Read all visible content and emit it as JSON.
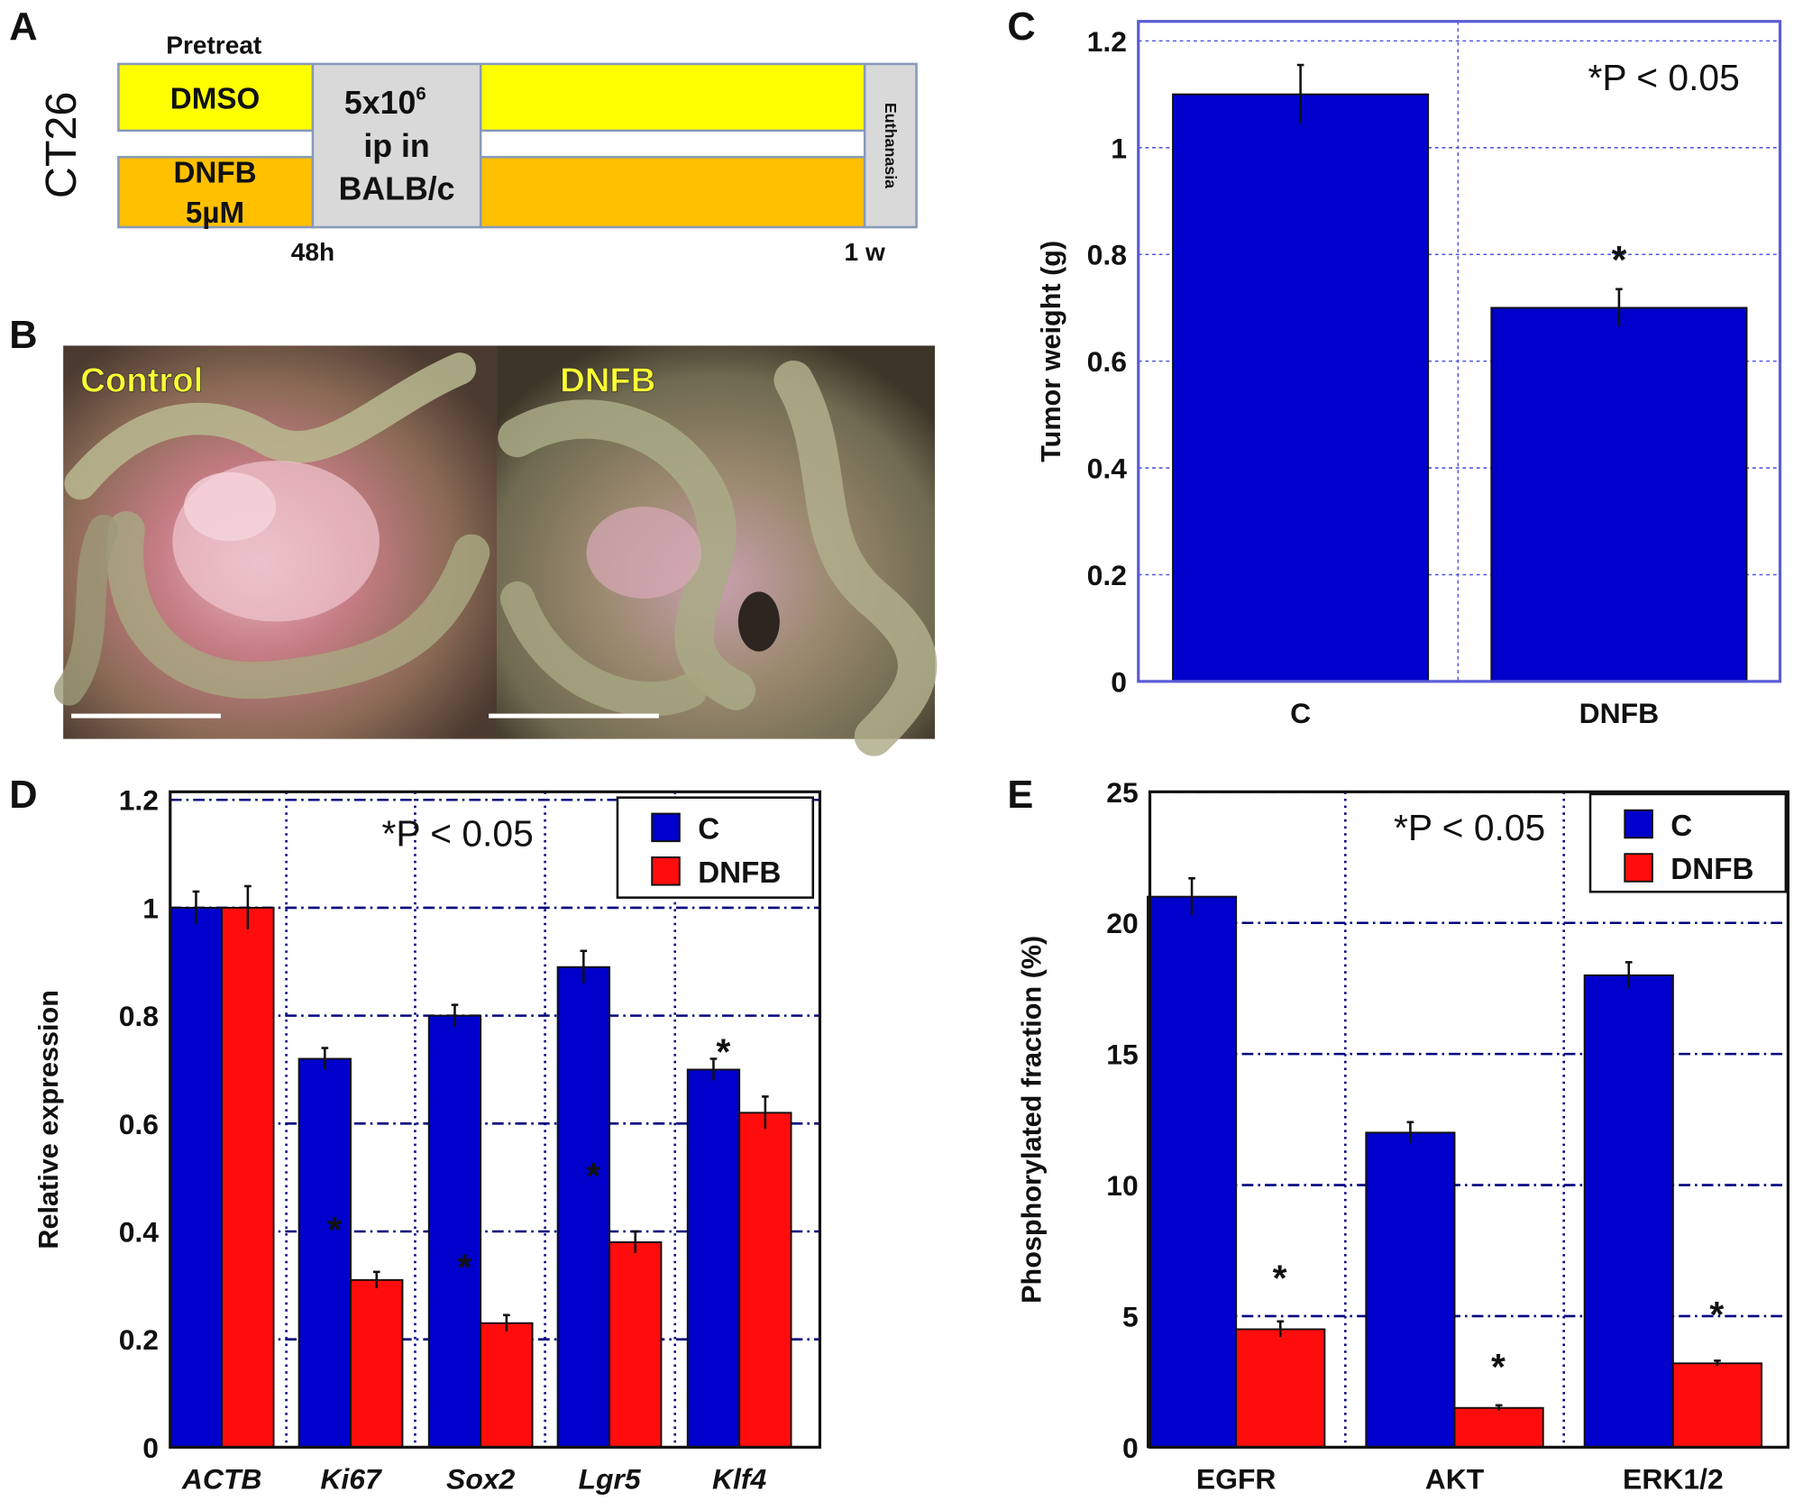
{
  "panel_labels": [
    "A",
    "B",
    "C",
    "D",
    "E"
  ],
  "panel_a": {
    "cell_line": "CT26",
    "pretreat_label": "Pretreat",
    "rows": [
      {
        "label_line1": "DMSO",
        "label_line2": "",
        "color": "#ffff00"
      },
      {
        "label_line1": "DNFB",
        "label_line2": "5µM",
        "color": "#ffc000"
      }
    ],
    "injection": {
      "line1": "5x10",
      "superscript": "6",
      "line2": "ip in",
      "line3": "BALB/c"
    },
    "end_label": "Euthanasia",
    "timepoints": [
      "48h",
      "1 w"
    ],
    "box_color": "#d9d9d9"
  },
  "panel_b": {
    "images": [
      {
        "label": "Control"
      },
      {
        "label": "DNFB"
      }
    ],
    "label_color": "#ffff33"
  },
  "chart_data": [
    {
      "panel": "C",
      "type": "bar",
      "categories": [
        "C",
        "DNFB"
      ],
      "values": [
        1.1,
        0.7
      ],
      "errors": [
        0.055,
        0.035
      ],
      "significant": [
        false,
        true
      ],
      "annotation": "*P < 0.05",
      "xlabel": "",
      "ylabel": "Tumor weight (g)",
      "ylim": [
        0,
        1.2
      ],
      "yticks": [
        "0",
        "0.2",
        "0.4",
        "0.6",
        "0.8",
        "1",
        "1.2"
      ],
      "grid": true,
      "colors": {
        "bar": "#0000cc",
        "grid": "#5555dd",
        "frame": "#5b5bd6"
      }
    },
    {
      "panel": "D",
      "type": "bar",
      "categories": [
        "ACTB",
        "Ki67",
        "Sox2",
        "Lgr5",
        "Klf4"
      ],
      "series": [
        {
          "name": "C",
          "values": [
            1.0,
            0.72,
            0.8,
            0.89,
            0.7
          ],
          "errors": [
            0.03,
            0.02,
            0.02,
            0.03,
            0.02
          ],
          "color": "#0000cc"
        },
        {
          "name": "DNFB",
          "values": [
            1.0,
            0.31,
            0.23,
            0.38,
            0.62
          ],
          "errors": [
            0.04,
            0.015,
            0.015,
            0.02,
            0.03
          ],
          "color": "#ff0d0d"
        }
      ],
      "significance_marks": [
        {
          "category": "Ki67",
          "y": 0.41
        },
        {
          "category": "Sox2",
          "y": 0.34
        },
        {
          "category": "Lgr5",
          "y": 0.51
        },
        {
          "category": "Klf4",
          "y": 0.74
        }
      ],
      "annotation": "*P < 0.05",
      "xlabel": "",
      "ylabel": "Relative expression",
      "ylim": [
        0,
        1.2
      ],
      "yticks": [
        "0",
        "0.2",
        "0.4",
        "0.6",
        "0.8",
        "1",
        "1.2"
      ],
      "grid": true,
      "legend_position": "top-right",
      "colors": {
        "grid": "#000080"
      }
    },
    {
      "panel": "E",
      "type": "bar",
      "categories": [
        "EGFR",
        "AKT",
        "ERK1/2"
      ],
      "series": [
        {
          "name": "C",
          "values": [
            21,
            12,
            18
          ],
          "errors": [
            0.7,
            0.4,
            0.5
          ],
          "color": "#0000cc"
        },
        {
          "name": "DNFB",
          "values": [
            4.5,
            1.5,
            3.2
          ],
          "errors": [
            0.3,
            0.1,
            0.1
          ],
          "color": "#ff0d0d"
        }
      ],
      "significance_marks": [
        {
          "category": "EGFR",
          "y": 6.6
        },
        {
          "category": "AKT",
          "y": 3.2
        },
        {
          "category": "ERK1/2",
          "y": 5.2
        }
      ],
      "annotation": "*P < 0.05",
      "xlabel": "",
      "ylabel": "Phosphorylated fraction (%)",
      "ylim": [
        0,
        25
      ],
      "yticks": [
        "0",
        "5",
        "10",
        "15",
        "20",
        "25"
      ],
      "grid": true,
      "legend_position": "top-right",
      "colors": {
        "grid": "#000080"
      }
    }
  ]
}
